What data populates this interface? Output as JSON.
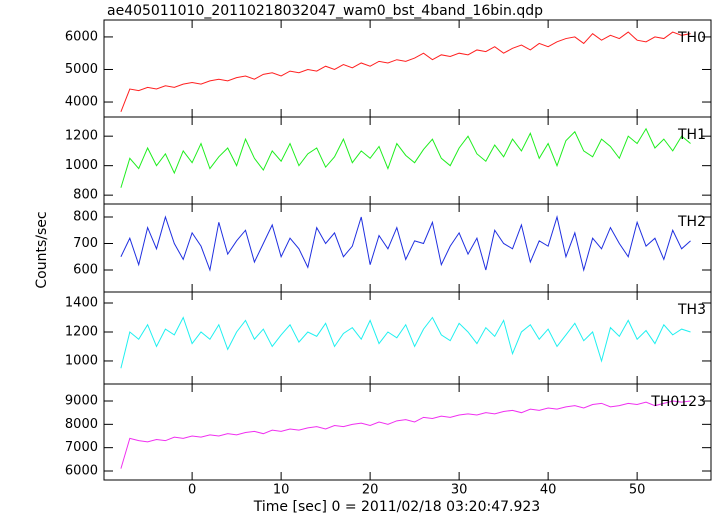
{
  "chart_data": [
    {
      "type": "line",
      "title": "ae405011010_20110218032047_wam0_bst_4band_16bin.qdp",
      "x": [
        -8,
        -7,
        -6,
        -5,
        -4,
        -3,
        -2,
        -1,
        0,
        1,
        2,
        3,
        4,
        5,
        6,
        7,
        8,
        9,
        10,
        11,
        12,
        13,
        14,
        15,
        16,
        17,
        18,
        19,
        20,
        21,
        22,
        23,
        24,
        25,
        26,
        27,
        28,
        29,
        30,
        31,
        32,
        33,
        34,
        35,
        36,
        37,
        38,
        39,
        40,
        41,
        42,
        43,
        44,
        45,
        46,
        47,
        48,
        49,
        50,
        51,
        52,
        53,
        54,
        55,
        56
      ],
      "series": [
        {
          "name": "TH0",
          "color": "#ff2020",
          "values": [
            3700,
            4400,
            4350,
            4450,
            4400,
            4500,
            4450,
            4550,
            4600,
            4550,
            4650,
            4700,
            4650,
            4750,
            4800,
            4700,
            4850,
            4900,
            4800,
            4950,
            4900,
            5000,
            4950,
            5100,
            5000,
            5150,
            5050,
            5200,
            5100,
            5250,
            5200,
            5300,
            5250,
            5350,
            5500,
            5300,
            5450,
            5400,
            5500,
            5450,
            5600,
            5550,
            5700,
            5500,
            5650,
            5750,
            5600,
            5800,
            5700,
            5850,
            5950,
            6000,
            5800,
            6100,
            5900,
            6050,
            5950,
            6150,
            5900,
            5850,
            6000,
            5950,
            6150,
            6050,
            6100
          ]
        }
      ],
      "xlim": [
        -9.9,
        58.3
      ],
      "xticks": [
        0,
        10,
        20,
        30,
        40,
        50
      ],
      "ylim": [
        3540,
        6520
      ],
      "yticks": [
        4000,
        5000,
        6000
      ]
    },
    {
      "type": "line",
      "x": [
        -8,
        -7,
        -6,
        -5,
        -4,
        -3,
        -2,
        -1,
        0,
        1,
        2,
        3,
        4,
        5,
        6,
        7,
        8,
        9,
        10,
        11,
        12,
        13,
        14,
        15,
        16,
        17,
        18,
        19,
        20,
        21,
        22,
        23,
        24,
        25,
        26,
        27,
        28,
        29,
        30,
        31,
        32,
        33,
        34,
        35,
        36,
        37,
        38,
        39,
        40,
        41,
        42,
        43,
        44,
        45,
        46,
        47,
        48,
        49,
        50,
        51,
        52,
        53,
        54,
        55,
        56
      ],
      "series": [
        {
          "name": "TH1",
          "color": "#20ee20",
          "values": [
            850,
            1050,
            980,
            1120,
            1000,
            1080,
            950,
            1100,
            1020,
            1150,
            980,
            1060,
            1120,
            1000,
            1180,
            1050,
            970,
            1100,
            1030,
            1150,
            1000,
            1080,
            1120,
            990,
            1060,
            1180,
            1020,
            1100,
            1050,
            1130,
            980,
            1150,
            1070,
            1020,
            1110,
            1180,
            1050,
            1000,
            1120,
            1200,
            1080,
            1030,
            1140,
            1060,
            1180,
            1100,
            1220,
            1050,
            1150,
            1000,
            1170,
            1230,
            1100,
            1060,
            1180,
            1130,
            1050,
            1200,
            1150,
            1250,
            1120,
            1180,
            1100,
            1200,
            1150
          ]
        }
      ],
      "xlim": [
        -9.9,
        58.3
      ],
      "xticks": [
        0,
        10,
        20,
        30,
        40,
        50
      ],
      "ylim": [
        740,
        1330
      ],
      "yticks": [
        800,
        1000,
        1200
      ]
    },
    {
      "type": "line",
      "ylabel": "Counts/sec",
      "x": [
        -8,
        -7,
        -6,
        -5,
        -4,
        -3,
        -2,
        -1,
        0,
        1,
        2,
        3,
        4,
        5,
        6,
        7,
        8,
        9,
        10,
        11,
        12,
        13,
        14,
        15,
        16,
        17,
        18,
        19,
        20,
        21,
        22,
        23,
        24,
        25,
        26,
        27,
        28,
        29,
        30,
        31,
        32,
        33,
        34,
        35,
        36,
        37,
        38,
        39,
        40,
        41,
        42,
        43,
        44,
        45,
        46,
        47,
        48,
        49,
        50,
        51,
        52,
        53,
        54,
        55,
        56
      ],
      "series": [
        {
          "name": "TH2",
          "color": "#2030e0",
          "values": [
            650,
            720,
            620,
            760,
            680,
            800,
            700,
            640,
            740,
            690,
            600,
            780,
            660,
            710,
            750,
            630,
            700,
            770,
            650,
            720,
            680,
            610,
            760,
            700,
            740,
            650,
            690,
            800,
            620,
            730,
            680,
            760,
            640,
            710,
            700,
            780,
            620,
            690,
            740,
            660,
            720,
            600,
            750,
            700,
            680,
            770,
            630,
            710,
            690,
            800,
            650,
            740,
            600,
            720,
            680,
            760,
            700,
            650,
            780,
            690,
            720,
            640,
            750,
            680,
            710
          ]
        }
      ],
      "xlim": [
        -9.9,
        58.3
      ],
      "xticks": [
        0,
        10,
        20,
        30,
        40,
        50
      ],
      "ylim": [
        517,
        849
      ],
      "yticks": [
        600,
        700,
        800
      ]
    },
    {
      "type": "line",
      "x": [
        -8,
        -7,
        -6,
        -5,
        -4,
        -3,
        -2,
        -1,
        0,
        1,
        2,
        3,
        4,
        5,
        6,
        7,
        8,
        9,
        10,
        11,
        12,
        13,
        14,
        15,
        16,
        17,
        18,
        19,
        20,
        21,
        22,
        23,
        24,
        25,
        26,
        27,
        28,
        29,
        30,
        31,
        32,
        33,
        34,
        35,
        36,
        37,
        38,
        39,
        40,
        41,
        42,
        43,
        44,
        45,
        46,
        47,
        48,
        49,
        50,
        51,
        52,
        53,
        54,
        55,
        56
      ],
      "series": [
        {
          "name": "TH3",
          "color": "#20f0f0",
          "values": [
            950,
            1200,
            1150,
            1250,
            1100,
            1220,
            1180,
            1300,
            1120,
            1200,
            1150,
            1250,
            1080,
            1200,
            1280,
            1150,
            1220,
            1100,
            1180,
            1250,
            1130,
            1200,
            1170,
            1260,
            1100,
            1190,
            1230,
            1150,
            1280,
            1120,
            1200,
            1160,
            1250,
            1100,
            1220,
            1300,
            1180,
            1140,
            1260,
            1200,
            1120,
            1230,
            1170,
            1280,
            1050,
            1200,
            1250,
            1150,
            1220,
            1100,
            1180,
            1260,
            1140,
            1200,
            1000,
            1230,
            1170,
            1280,
            1150,
            1210,
            1120,
            1250,
            1180,
            1220,
            1200
          ]
        }
      ],
      "xlim": [
        -9.9,
        58.3
      ],
      "xticks": [
        0,
        10,
        20,
        30,
        40,
        50
      ],
      "ylim": [
        841,
        1476
      ],
      "yticks": [
        1000,
        1200,
        1400
      ]
    },
    {
      "type": "line",
      "xlabel": "Time [sec] 0 = 2011/02/18 03:20:47.923",
      "x": [
        -8,
        -7,
        -6,
        -5,
        -4,
        -3,
        -2,
        -1,
        0,
        1,
        2,
        3,
        4,
        5,
        6,
        7,
        8,
        9,
        10,
        11,
        12,
        13,
        14,
        15,
        16,
        17,
        18,
        19,
        20,
        21,
        22,
        23,
        24,
        25,
        26,
        27,
        28,
        29,
        30,
        31,
        32,
        33,
        34,
        35,
        36,
        37,
        38,
        39,
        40,
        41,
        42,
        43,
        44,
        45,
        46,
        47,
        48,
        49,
        50,
        51,
        52,
        53,
        54,
        55,
        56
      ],
      "series": [
        {
          "name": "TH0123",
          "color": "#f030f0",
          "values": [
            6100,
            7400,
            7300,
            7250,
            7350,
            7300,
            7450,
            7400,
            7500,
            7450,
            7550,
            7500,
            7600,
            7550,
            7650,
            7700,
            7600,
            7750,
            7700,
            7800,
            7750,
            7850,
            7900,
            7800,
            7950,
            7900,
            8000,
            8050,
            7950,
            8100,
            8000,
            8150,
            8200,
            8100,
            8300,
            8250,
            8350,
            8300,
            8400,
            8450,
            8400,
            8500,
            8450,
            8550,
            8600,
            8500,
            8650,
            8600,
            8700,
            8650,
            8750,
            8800,
            8700,
            8850,
            8900,
            8750,
            8800,
            8900,
            8850,
            8950,
            8800,
            8900,
            9000,
            8950,
            9000
          ]
        }
      ],
      "xlim": [
        -9.9,
        58.3
      ],
      "xticks": [
        0,
        10,
        20,
        30,
        40,
        50
      ],
      "ylim": [
        5614,
        9729
      ],
      "yticks": [
        6000,
        7000,
        8000,
        9000
      ]
    }
  ]
}
